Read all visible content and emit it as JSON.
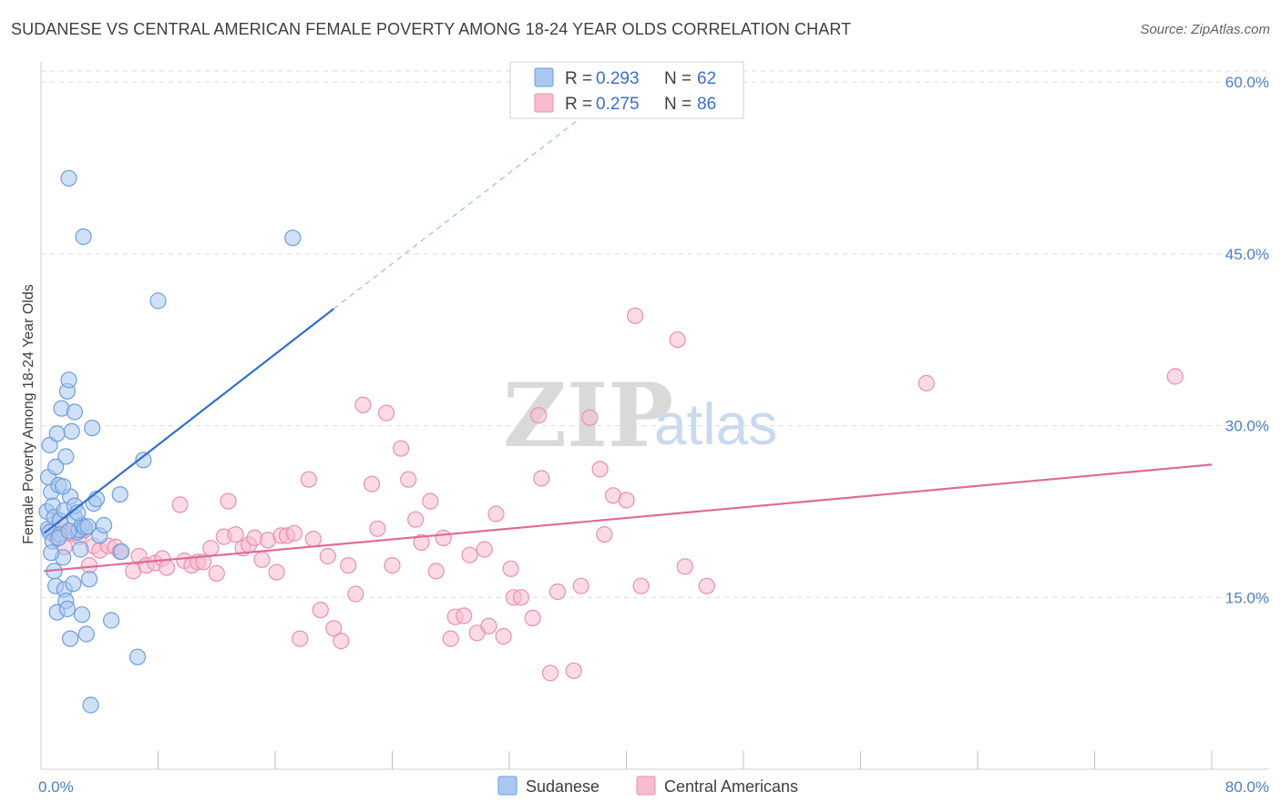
{
  "header": {
    "title": "SUDANESE VS CENTRAL AMERICAN FEMALE POVERTY AMONG 18-24 YEAR OLDS CORRELATION CHART",
    "source": "Source: ZipAtlas.com"
  },
  "watermark": {
    "zip": "ZIP",
    "atlas": "atlas"
  },
  "colors": {
    "sudanese_fill": "#aac8f0",
    "sudanese_stroke": "#6a9ee0",
    "sudanese_line": "#2f6fd0",
    "central_fill": "#f7bcd0",
    "central_stroke": "#ea8fb0",
    "central_line": "#e06a98",
    "grid": "#dcdcdc",
    "axis_text": "#4a7fd1"
  },
  "legend": {
    "rows": [
      {
        "r_label": "R = ",
        "r_value": "0.293",
        "n_label": "N = ",
        "n_value": "62"
      },
      {
        "r_label": "R = ",
        "r_value": "0.275",
        "n_label": "N = ",
        "n_value": "86"
      }
    ]
  },
  "chart_data": {
    "type": "scatter",
    "title": "SUDANESE VS CENTRAL AMERICAN FEMALE POVERTY AMONG 18-24 YEAR OLDS CORRELATION CHART",
    "xlabel": "",
    "ylabel": "Female Poverty Among 18-24 Year Olds",
    "xlim": [
      0,
      80
    ],
    "ylim": [
      0,
      62
    ],
    "x_tick_labels": [
      "0.0%",
      "80.0%"
    ],
    "y_ticks": [
      15,
      30,
      45,
      60
    ],
    "y_tick_labels": [
      "15.0%",
      "30.0%",
      "45.0%",
      "60.0%"
    ],
    "grid": true,
    "legend_position": "top-center",
    "series": [
      {
        "name": "Sudanese",
        "R": 0.293,
        "N": 62,
        "trend": {
          "x": [
            0.2,
            20.0
          ],
          "y": [
            20.6,
            40.2
          ],
          "dashed_to": [
            37.0,
            57.0
          ]
        },
        "points": [
          [
            0.4,
            22.5
          ],
          [
            0.5,
            21.0
          ],
          [
            0.6,
            20.7
          ],
          [
            0.5,
            25.5
          ],
          [
            0.7,
            24.2
          ],
          [
            0.6,
            28.3
          ],
          [
            0.8,
            23.0
          ],
          [
            0.9,
            22.0
          ],
          [
            0.8,
            19.9
          ],
          [
            1.0,
            26.4
          ],
          [
            0.9,
            17.3
          ],
          [
            1.0,
            16.0
          ],
          [
            1.1,
            13.7
          ],
          [
            1.1,
            29.3
          ],
          [
            1.2,
            24.8
          ],
          [
            1.3,
            21.7
          ],
          [
            1.3,
            20.5
          ],
          [
            1.4,
            31.5
          ],
          [
            1.5,
            18.5
          ],
          [
            1.6,
            22.6
          ],
          [
            1.6,
            15.7
          ],
          [
            1.7,
            27.3
          ],
          [
            1.7,
            14.7
          ],
          [
            1.8,
            14.0
          ],
          [
            1.8,
            33.0
          ],
          [
            1.9,
            34.0
          ],
          [
            1.9,
            51.6
          ],
          [
            2.0,
            23.8
          ],
          [
            2.0,
            11.4
          ],
          [
            2.1,
            29.5
          ],
          [
            2.2,
            16.2
          ],
          [
            2.3,
            22.0
          ],
          [
            2.3,
            23.0
          ],
          [
            2.3,
            31.2
          ],
          [
            2.5,
            20.7
          ],
          [
            2.6,
            20.9
          ],
          [
            2.7,
            19.2
          ],
          [
            2.8,
            21.3
          ],
          [
            2.8,
            13.5
          ],
          [
            2.9,
            46.5
          ],
          [
            3.0,
            21.1
          ],
          [
            3.1,
            11.8
          ],
          [
            3.2,
            21.2
          ],
          [
            3.3,
            16.6
          ],
          [
            3.4,
            5.6
          ],
          [
            3.5,
            29.8
          ],
          [
            3.6,
            23.2
          ],
          [
            3.8,
            23.6
          ],
          [
            4.0,
            20.4
          ],
          [
            4.3,
            21.3
          ],
          [
            4.8,
            13.0
          ],
          [
            5.4,
            24.0
          ],
          [
            5.5,
            19.0
          ],
          [
            6.6,
            9.8
          ],
          [
            7.0,
            27.0
          ],
          [
            8.0,
            40.9
          ],
          [
            17.2,
            46.4
          ],
          [
            1.2,
            20.2
          ],
          [
            2.5,
            22.4
          ],
          [
            1.5,
            24.7
          ],
          [
            0.7,
            18.9
          ],
          [
            1.9,
            20.8
          ]
        ]
      },
      {
        "name": "Central Americans",
        "R": 0.275,
        "N": 86,
        "trend": {
          "x": [
            0.2,
            80.0
          ],
          "y": [
            17.3,
            26.6
          ]
        },
        "points": [
          [
            0.8,
            21.0
          ],
          [
            1.0,
            20.3
          ],
          [
            1.3,
            21.5
          ],
          [
            1.6,
            19.4
          ],
          [
            1.9,
            20.6
          ],
          [
            2.2,
            20.6
          ],
          [
            2.6,
            20.3
          ],
          [
            3.0,
            20.9
          ],
          [
            3.3,
            17.8
          ],
          [
            3.6,
            19.5
          ],
          [
            4.0,
            19.1
          ],
          [
            4.6,
            19.5
          ],
          [
            5.1,
            19.4
          ],
          [
            5.4,
            19.0
          ],
          [
            6.3,
            17.3
          ],
          [
            6.7,
            18.6
          ],
          [
            7.2,
            17.8
          ],
          [
            7.8,
            18.0
          ],
          [
            8.3,
            18.4
          ],
          [
            8.6,
            17.6
          ],
          [
            9.5,
            23.1
          ],
          [
            9.8,
            18.2
          ],
          [
            10.3,
            17.8
          ],
          [
            10.7,
            18.1
          ],
          [
            11.1,
            18.1
          ],
          [
            11.6,
            19.3
          ],
          [
            12.0,
            17.1
          ],
          [
            12.5,
            20.3
          ],
          [
            12.8,
            23.4
          ],
          [
            13.3,
            20.5
          ],
          [
            13.8,
            19.3
          ],
          [
            14.2,
            19.6
          ],
          [
            14.6,
            20.2
          ],
          [
            15.1,
            18.3
          ],
          [
            15.5,
            20.0
          ],
          [
            16.1,
            17.2
          ],
          [
            16.4,
            20.4
          ],
          [
            16.8,
            20.4
          ],
          [
            17.3,
            20.6
          ],
          [
            17.7,
            11.4
          ],
          [
            18.3,
            25.3
          ],
          [
            18.6,
            20.1
          ],
          [
            19.1,
            13.9
          ],
          [
            19.6,
            18.6
          ],
          [
            20.0,
            12.3
          ],
          [
            20.5,
            11.2
          ],
          [
            21.0,
            17.8
          ],
          [
            21.5,
            15.3
          ],
          [
            22.0,
            31.8
          ],
          [
            22.6,
            24.9
          ],
          [
            23.0,
            21.0
          ],
          [
            23.6,
            31.1
          ],
          [
            24.0,
            17.8
          ],
          [
            24.6,
            28.0
          ],
          [
            25.1,
            25.3
          ],
          [
            25.6,
            21.8
          ],
          [
            26.0,
            19.8
          ],
          [
            26.6,
            23.4
          ],
          [
            27.0,
            17.3
          ],
          [
            27.5,
            20.2
          ],
          [
            28.0,
            11.4
          ],
          [
            28.3,
            13.3
          ],
          [
            28.9,
            13.4
          ],
          [
            29.3,
            18.7
          ],
          [
            29.8,
            11.9
          ],
          [
            30.3,
            19.2
          ],
          [
            30.6,
            12.5
          ],
          [
            31.1,
            22.3
          ],
          [
            31.6,
            11.6
          ],
          [
            32.1,
            17.5
          ],
          [
            32.3,
            15.0
          ],
          [
            32.8,
            15.0
          ],
          [
            33.6,
            13.2
          ],
          [
            34.0,
            30.9
          ],
          [
            34.2,
            25.4
          ],
          [
            34.8,
            8.4
          ],
          [
            35.3,
            15.5
          ],
          [
            36.4,
            8.6
          ],
          [
            36.9,
            16.0
          ],
          [
            37.5,
            30.7
          ],
          [
            38.2,
            26.2
          ],
          [
            38.5,
            20.5
          ],
          [
            39.1,
            23.9
          ],
          [
            40.0,
            23.5
          ],
          [
            40.6,
            39.6
          ],
          [
            41.0,
            16.0
          ]
        ]
      }
    ]
  },
  "extra_points_note": "",
  "bottom_legend": {
    "series_a": "Sudanese",
    "series_b": "Central Americans"
  },
  "axis": {
    "y_title": "Female Poverty Among 18-24 Year Olds",
    "x_min_label": "0.0%",
    "x_max_label": "80.0%"
  }
}
